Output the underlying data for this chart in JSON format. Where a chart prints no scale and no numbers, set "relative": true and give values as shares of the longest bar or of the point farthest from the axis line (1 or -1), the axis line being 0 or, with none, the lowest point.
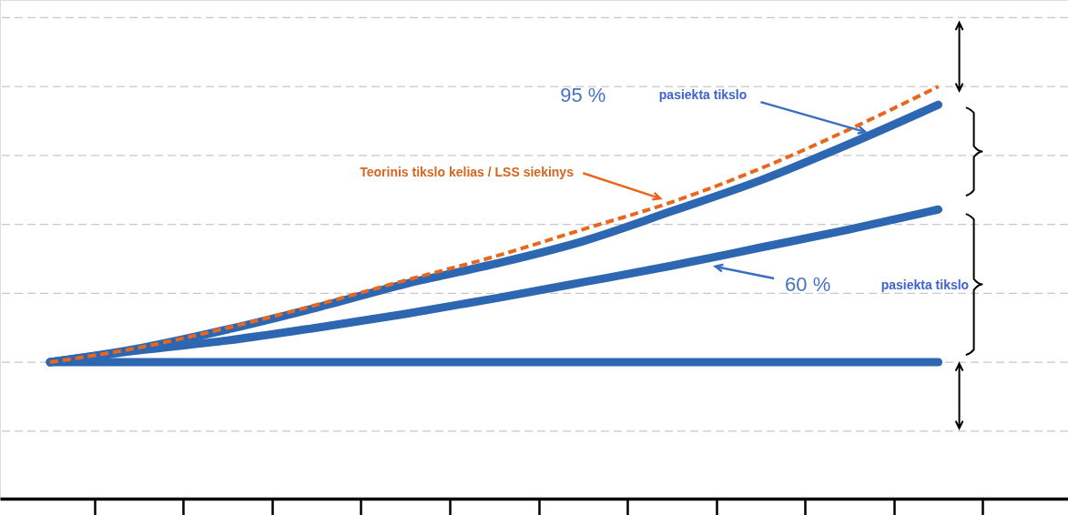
{
  "chart_data": {
    "type": "line",
    "relative": true,
    "categories": [
      null,
      null,
      null,
      null,
      null,
      null,
      null,
      null,
      null,
      null,
      null
    ],
    "series": [
      {
        "color": "#2e67b1",
        "values": [
          0,
          0.05,
          0.119,
          0.198,
          0.284,
          0.356,
          0.439,
          0.548,
          0.66,
          0.792,
          0.934
        ]
      },
      {
        "color": "#2e67b1",
        "values": [
          0,
          0.043,
          0.079,
          0.125,
          0.175,
          0.231,
          0.29,
          0.35,
          0.416,
          0.482,
          0.554
        ]
      },
      {
        "color": "#2e67b1",
        "values": [
          0,
          0,
          0,
          0,
          0,
          0,
          0,
          0,
          0,
          0,
          0
        ]
      },
      {
        "color": "#e8671c",
        "line_style": "dashed",
        "values": [
          0,
          0.053,
          0.125,
          0.208,
          0.297,
          0.383,
          0.482,
          0.581,
          0.703,
          0.845,
          1
        ]
      }
    ],
    "ref_lines": [
      {
        "axis": "y",
        "value": 1.25,
        "color": "#c8c8c8",
        "line_style": "dashed"
      },
      {
        "axis": "y",
        "value": 1,
        "color": "#c8c8c8",
        "line_style": "dashed"
      },
      {
        "axis": "y",
        "value": 0.75,
        "color": "#c8c8c8",
        "line_style": "dashed"
      },
      {
        "axis": "y",
        "value": 0.5,
        "color": "#c8c8c8",
        "line_style": "dashed"
      },
      {
        "axis": "y",
        "value": 0.25,
        "color": "#c8c8c8",
        "line_style": "dashed"
      },
      {
        "axis": "y",
        "value": 0,
        "color": "#c8c8c8",
        "line_style": "dashed"
      },
      {
        "axis": "y",
        "value": -0.25,
        "color": "#c8c8c8",
        "line_style": "dashed"
      }
    ],
    "annotations": [
      "95 %",
      "pasiekta tikslo",
      "Teorinis tikslo kelias / LSS siekinys",
      "60 %",
      "pasiekta tikslo"
    ],
    "marker": "none",
    "grid": false
  }
}
